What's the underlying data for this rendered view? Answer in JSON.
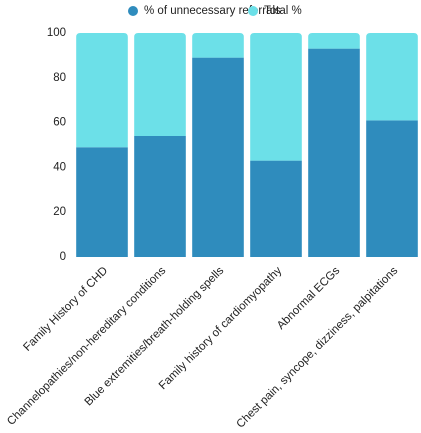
{
  "chart_data": {
    "type": "bar",
    "stacked": true,
    "categories": [
      "Family History of CHD",
      "Channelopathies/non-hereditary conditions",
      "Blue extremities/breath-holding spells",
      "Family history of cardiomyopathy",
      "Abnormal ECGs",
      "Chest pain, syncope, dizziness, palpitations"
    ],
    "series": [
      {
        "name": "% of unnecessary referrals",
        "color": "#2f8cbd",
        "values": [
          49,
          54,
          89,
          43,
          93,
          61
        ]
      },
      {
        "name": "Total %",
        "color": "#6ce0e8",
        "values": [
          51,
          46,
          11,
          57,
          7,
          39
        ]
      }
    ],
    "ylim": [
      0,
      100
    ],
    "yticks": [
      0,
      20,
      40,
      60,
      80,
      100
    ],
    "grid": false
  }
}
